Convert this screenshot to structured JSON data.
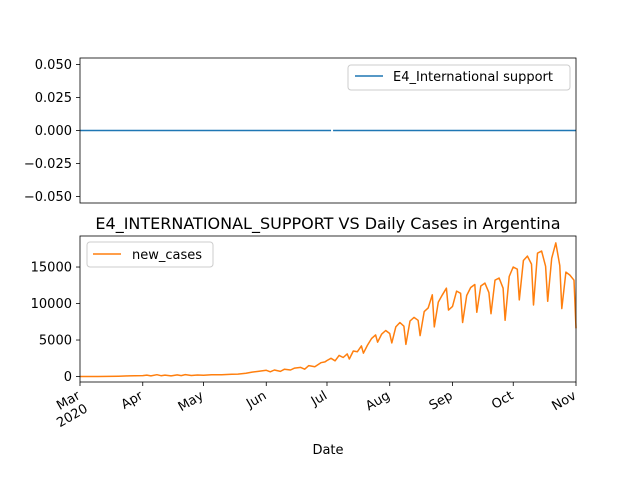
{
  "chart_data": [
    {
      "type": "line",
      "title": "",
      "xlabel": "",
      "ylabel": "",
      "xlim": [
        "2020-03-01",
        "2020-11-01"
      ],
      "ylim": [
        -0.055,
        0.055
      ],
      "yticks": [
        -0.05,
        -0.025,
        0.0,
        0.025,
        0.05
      ],
      "ytick_labels": [
        "−0.050",
        "−0.025",
        "0.000",
        "0.025",
        "0.050"
      ],
      "legend": "top-right",
      "series": [
        {
          "name": "E4_International support",
          "color": "#1f77b4",
          "segments": [
            {
              "x": [
                "2020-03-01",
                "2020-07-03"
              ],
              "y": [
                0,
                0
              ]
            },
            {
              "x": [
                "2020-07-04",
                "2020-11-01"
              ],
              "y": [
                0,
                0
              ]
            }
          ]
        }
      ]
    },
    {
      "type": "line",
      "title": "E4_INTERNATIONAL_SUPPORT VS Daily Cases in Argentina",
      "xlabel": "Date",
      "ylabel": "",
      "xlim": [
        "2020-03-01",
        "2020-11-01"
      ],
      "ylim": [
        -750,
        19250
      ],
      "yticks": [
        0,
        5000,
        10000,
        15000
      ],
      "ytick_labels": [
        "0",
        "5000",
        "10000",
        "15000"
      ],
      "xticks": [
        "2020-03-01",
        "2020-04-01",
        "2020-05-01",
        "2020-06-01",
        "2020-07-01",
        "2020-08-01",
        "2020-09-01",
        "2020-10-01",
        "2020-11-01"
      ],
      "xtick_labels": [
        "Mar\n2020",
        "Apr",
        "May",
        "Jun",
        "Jul",
        "Aug",
        "Sep",
        "Oct",
        "Nov"
      ],
      "legend": "top-left",
      "series": [
        {
          "name": "new_cases",
          "color": "#ff7f0e",
          "x": [
            "2020-03-01",
            "2020-03-10",
            "2020-03-20",
            "2020-03-25",
            "2020-03-28",
            "2020-04-01",
            "2020-04-03",
            "2020-04-05",
            "2020-04-08",
            "2020-04-10",
            "2020-04-12",
            "2020-04-15",
            "2020-04-18",
            "2020-04-20",
            "2020-04-22",
            "2020-04-25",
            "2020-04-28",
            "2020-05-01",
            "2020-05-05",
            "2020-05-10",
            "2020-05-15",
            "2020-05-18",
            "2020-05-22",
            "2020-05-25",
            "2020-05-28",
            "2020-06-01",
            "2020-06-03",
            "2020-06-05",
            "2020-06-08",
            "2020-06-10",
            "2020-06-13",
            "2020-06-15",
            "2020-06-18",
            "2020-06-20",
            "2020-06-22",
            "2020-06-25",
            "2020-06-28",
            "2020-06-30",
            "2020-07-01",
            "2020-07-03",
            "2020-07-05",
            "2020-07-07",
            "2020-07-09",
            "2020-07-11",
            "2020-07-12",
            "2020-07-14",
            "2020-07-16",
            "2020-07-18",
            "2020-07-19",
            "2020-07-21",
            "2020-07-23",
            "2020-07-25",
            "2020-07-26",
            "2020-07-28",
            "2020-07-30",
            "2020-08-01",
            "2020-08-02",
            "2020-08-04",
            "2020-08-06",
            "2020-08-08",
            "2020-08-09",
            "2020-08-11",
            "2020-08-13",
            "2020-08-15",
            "2020-08-16",
            "2020-08-18",
            "2020-08-20",
            "2020-08-22",
            "2020-08-23",
            "2020-08-25",
            "2020-08-27",
            "2020-08-29",
            "2020-08-30",
            "2020-09-01",
            "2020-09-03",
            "2020-09-05",
            "2020-09-06",
            "2020-09-08",
            "2020-09-10",
            "2020-09-12",
            "2020-09-13",
            "2020-09-15",
            "2020-09-17",
            "2020-09-19",
            "2020-09-20",
            "2020-09-22",
            "2020-09-24",
            "2020-09-26",
            "2020-09-27",
            "2020-09-29",
            "2020-10-01",
            "2020-10-03",
            "2020-10-04",
            "2020-10-06",
            "2020-10-08",
            "2020-10-10",
            "2020-10-11",
            "2020-10-13",
            "2020-10-15",
            "2020-10-17",
            "2020-10-18",
            "2020-10-20",
            "2020-10-22",
            "2020-10-24",
            "2020-10-25",
            "2020-10-27",
            "2020-10-29",
            "2020-10-31",
            "2020-11-01"
          ],
          "y": [
            0,
            10,
            50,
            90,
            100,
            120,
            200,
            80,
            250,
            110,
            200,
            90,
            220,
            130,
            260,
            140,
            210,
            170,
            250,
            230,
            300,
            330,
            450,
            600,
            700,
            850,
            650,
            900,
            700,
            1000,
            900,
            1150,
            1250,
            1000,
            1500,
            1350,
            1900,
            2000,
            2200,
            2500,
            2150,
            2900,
            2600,
            3100,
            2400,
            3500,
            3400,
            4200,
            3200,
            4300,
            5200,
            5700,
            4700,
            5800,
            6300,
            5900,
            4600,
            6800,
            7400,
            6900,
            4400,
            7600,
            8100,
            7700,
            5600,
            8900,
            9400,
            11200,
            6800,
            10200,
            11200,
            12100,
            9100,
            9600,
            11700,
            11400,
            7400,
            11100,
            12200,
            12600,
            8800,
            12400,
            12800,
            11500,
            8600,
            13200,
            13500,
            12100,
            7700,
            13700,
            15000,
            14700,
            10500,
            15900,
            16500,
            15400,
            9800,
            16900,
            17200,
            15100,
            10300,
            16200,
            18300,
            15200,
            9300,
            14300,
            13900,
            13200,
            6600
          ]
        }
      ]
    }
  ]
}
